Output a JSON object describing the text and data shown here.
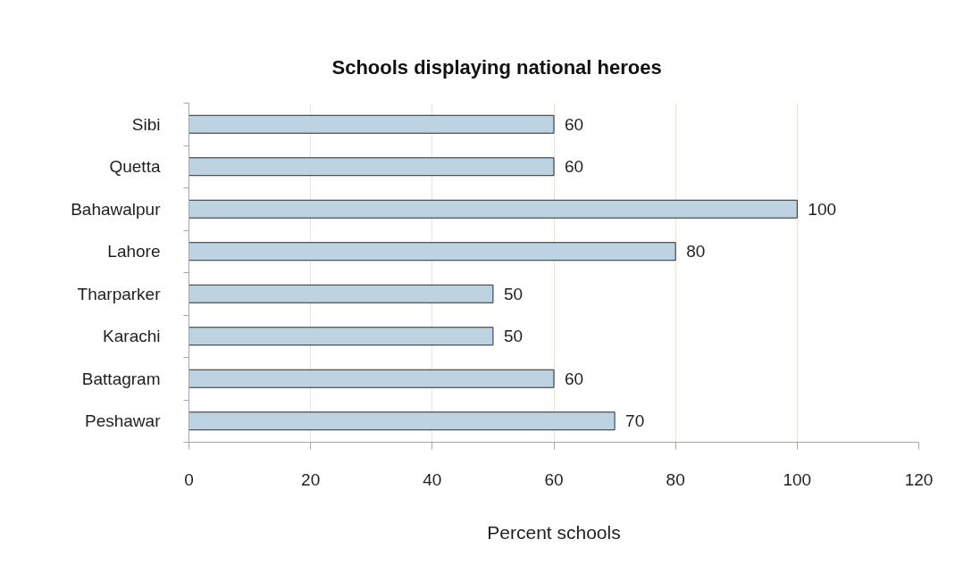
{
  "chart_data": {
    "type": "bar",
    "orientation": "horizontal",
    "title": "Schools  displaying national heroes",
    "xlabel": "Percent schools",
    "categories": [
      "Sibi",
      "Quetta",
      "Bahawalpur",
      "Lahore",
      "Tharparker",
      "Karachi",
      "Battagram",
      "Peshawar"
    ],
    "values": [
      60,
      60,
      100,
      80,
      50,
      50,
      60,
      70
    ],
    "color": "#bdd3e2",
    "xlim": [
      0,
      120
    ],
    "xticks": [
      0,
      20,
      40,
      60,
      80,
      100,
      120
    ],
    "grid": "x",
    "data_labels": true
  }
}
